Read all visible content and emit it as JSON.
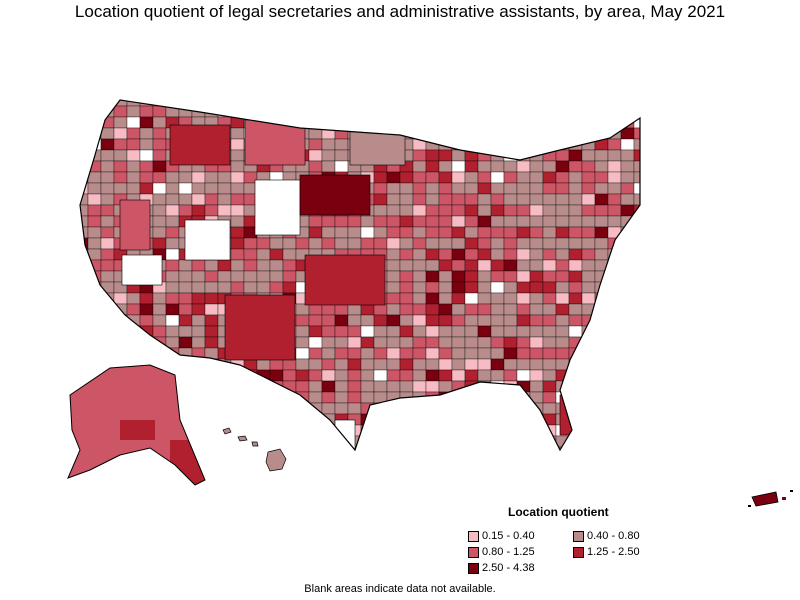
{
  "title": "Location quotient of legal secretaries and administrative assistants, by area, May 2021",
  "legend": {
    "title": "Location quotient",
    "items": [
      {
        "label": "0.15 - 0.40",
        "color": "#f7bcc3"
      },
      {
        "label": "0.40 - 0.80",
        "color": "#b98c8c"
      },
      {
        "label": "0.80 - 1.25",
        "color": "#cc5566"
      },
      {
        "label": "1.25 - 2.50",
        "color": "#b0202e"
      },
      {
        "label": "2.50 - 4.38",
        "color": "#7a0010"
      }
    ]
  },
  "note": "Blank areas indicate data not available.",
  "map": {
    "type": "choropleth",
    "region": "United States (incl. Alaska, Hawaii, Puerto Rico)",
    "units": "metropolitan and nonmetropolitan areas",
    "blank_color": "#ffffff"
  }
}
